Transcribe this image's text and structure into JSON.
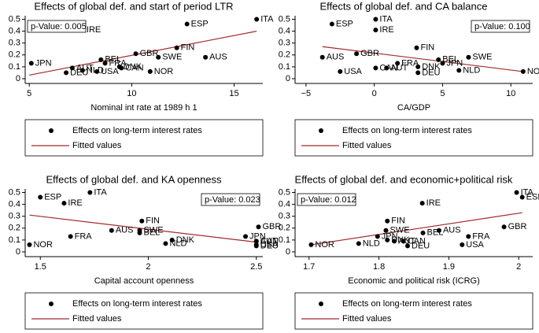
{
  "chart_data": [
    {
      "type": "scatter",
      "title": "Effects of global def. and start of period LTR",
      "x_label": "Nominal int rate at 1989 h 1",
      "annotation": "p-Value: 0.005",
      "annotation_position": "top-left",
      "labels": [
        "ITA",
        "ESP",
        "IRE",
        "FIN",
        "GBR",
        "AUS",
        "SWE",
        "BEL",
        "JPN",
        "FRA",
        "DNK",
        "CAN",
        "AUT",
        "NLD",
        "USA",
        "NOR",
        "DEU"
      ],
      "x": [
        16.1,
        12.7,
        7.6,
        12.2,
        10.2,
        13.6,
        11.3,
        8.5,
        5.1,
        8.7,
        9.4,
        9.5,
        7.1,
        7.6,
        8.3,
        10.9,
        6.8
      ],
      "series": [
        {
          "name": "Effects on long-term interest rates",
          "color": "#000000",
          "values": [
            0.5,
            0.46,
            0.41,
            0.26,
            0.21,
            0.18,
            0.18,
            0.16,
            0.13,
            0.13,
            0.1,
            0.09,
            0.09,
            0.07,
            0.06,
            0.06,
            0.05
          ]
        },
        {
          "name": "Fitted values",
          "color": "#a52a2a",
          "x": [
            5,
            16.1
          ],
          "values": [
            0.03,
            0.4
          ]
        }
      ],
      "xlim": [
        4.8,
        16.4
      ],
      "xticks": [
        5,
        10,
        15
      ],
      "ylim": [
        -0.04,
        0.53
      ],
      "yticks": [
        0,
        0.1,
        0.2,
        0.3,
        0.4,
        0.5
      ]
    },
    {
      "type": "scatter",
      "title": "Effects of global def. and CA balance",
      "x_label": "CA/GDP",
      "annotation": "p-Value: 0.100",
      "annotation_position": "top-right",
      "labels": [
        "ITA",
        "ESP",
        "IRE",
        "FIN",
        "GBR",
        "AUS",
        "SWE",
        "BEL",
        "JPN",
        "FRA",
        "DNK",
        "CAN",
        "AUT",
        "NLD",
        "USA",
        "NOR",
        "DEU"
      ],
      "x": [
        0.1,
        -3.1,
        0.1,
        3.1,
        -1.3,
        -3.8,
        6.9,
        4.7,
        5.0,
        1.7,
        3.2,
        0.1,
        0.9,
        6.2,
        -2.5,
        10.9,
        3.2
      ],
      "series": [
        {
          "name": "Effects on long-term interest rates",
          "color": "#000000",
          "values": [
            0.5,
            0.46,
            0.41,
            0.26,
            0.21,
            0.18,
            0.18,
            0.16,
            0.13,
            0.13,
            0.1,
            0.09,
            0.09,
            0.07,
            0.06,
            0.06,
            0.05
          ]
        },
        {
          "name": "Fitted values",
          "color": "#a52a2a",
          "x": [
            -3.8,
            10.9
          ],
          "values": [
            0.27,
            0.06
          ]
        }
      ],
      "xlim": [
        -5.8,
        11.6
      ],
      "xticks": [
        {
          "value": -5,
          "label": "−5"
        },
        0,
        5,
        10
      ],
      "ylim": [
        -0.04,
        0.53
      ],
      "yticks": [
        0,
        0.1,
        0.2,
        0.3,
        0.4,
        0.5
      ]
    },
    {
      "type": "scatter",
      "title": "Effects of global def. and KA openness",
      "x_label": "Capital account openness",
      "annotation": "p-Value: 0.023",
      "annotation_position": "top-right",
      "labels": [
        "ITA",
        "ESP",
        "IRE",
        "FIN",
        "GBR",
        "AUS",
        "SWE",
        "BEL",
        "JPN",
        "FRA",
        "DNK",
        "CAN",
        "AUT",
        "NLD",
        "USA",
        "NOR",
        "DEU"
      ],
      "x": [
        1.73,
        1.5,
        1.61,
        1.97,
        2.51,
        1.83,
        1.96,
        1.96,
        2.45,
        1.64,
        2.11,
        2.5,
        2.5,
        2.08,
        2.5,
        1.45,
        2.5
      ],
      "series": [
        {
          "name": "Effects on long-term interest rates",
          "color": "#000000",
          "values": [
            0.5,
            0.46,
            0.41,
            0.26,
            0.21,
            0.18,
            0.18,
            0.16,
            0.13,
            0.13,
            0.1,
            0.09,
            0.09,
            0.07,
            0.06,
            0.06,
            0.05
          ]
        },
        {
          "name": "Fitted values",
          "color": "#a52a2a",
          "x": [
            1.45,
            2.51
          ],
          "values": [
            0.31,
            0.08
          ]
        }
      ],
      "xlim": [
        1.43,
        2.53
      ],
      "xticks": [
        1.5,
        2,
        2.5
      ],
      "ylim": [
        -0.04,
        0.53
      ],
      "yticks": [
        0,
        0.1,
        0.2,
        0.3,
        0.4,
        0.5
      ]
    },
    {
      "type": "scatter",
      "title": "Effects of global def. and economic+political risk",
      "x_label": "Economic and political risk (ICRG)",
      "annotation": "p-Value: 0.012",
      "annotation_position": "top-left",
      "labels": [
        "ITA",
        "ESP",
        "IRE",
        "FIN",
        "GBR",
        "AUS",
        "SWE",
        "BEL",
        "JPN",
        "FRA",
        "DNK",
        "CAN",
        "AUT",
        "NLD",
        "USA",
        "NOR",
        "DEU"
      ],
      "x": [
        1.997,
        2.005,
        1.862,
        1.812,
        1.979,
        1.886,
        1.81,
        1.863,
        1.798,
        1.928,
        1.812,
        1.835,
        1.822,
        1.771,
        1.919,
        1.703,
        1.841
      ],
      "series": [
        {
          "name": "Effects on long-term interest rates",
          "color": "#000000",
          "values": [
            0.5,
            0.46,
            0.41,
            0.26,
            0.21,
            0.18,
            0.18,
            0.16,
            0.13,
            0.13,
            0.1,
            0.09,
            0.09,
            0.07,
            0.06,
            0.06,
            0.05
          ]
        },
        {
          "name": "Fitted values",
          "color": "#a52a2a",
          "x": [
            1.703,
            2.005
          ],
          "values": [
            0.06,
            0.33
          ]
        }
      ],
      "xlim": [
        1.68,
        2.02
      ],
      "xticks": [
        1.7,
        1.8,
        1.9,
        2
      ],
      "ylim": [
        -0.04,
        0.53
      ],
      "yticks": [
        0,
        0.1,
        0.2,
        0.3,
        0.4,
        0.5
      ]
    }
  ]
}
